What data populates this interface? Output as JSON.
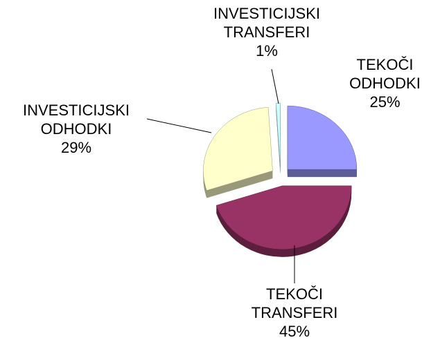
{
  "chart_data": {
    "type": "pie",
    "categories": [
      "TEKOČI ODHODKI",
      "TEKOČI TRANSFERI",
      "INVESTICIJSKI ODHODKI",
      "INVESTICIJSKI TRANSFERI"
    ],
    "values": [
      25,
      45,
      29,
      1
    ],
    "value_labels": [
      "25%",
      "45%",
      "29%",
      "1%"
    ],
    "colors": [
      "#9999ff",
      "#993366",
      "#ffffcc",
      "#ccffff"
    ]
  }
}
